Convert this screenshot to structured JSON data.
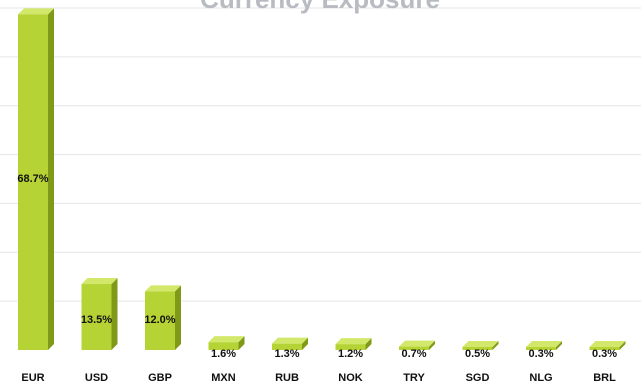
{
  "chart_data": {
    "type": "bar",
    "title": "Currency Exposure",
    "categories": [
      "EUR",
      "USD",
      "GBP",
      "MXN",
      "RUB",
      "NOK",
      "TRY",
      "SGD",
      "NLG",
      "BRL"
    ],
    "values": [
      68.7,
      13.5,
      12.0,
      1.6,
      1.3,
      1.2,
      0.7,
      0.5,
      0.3,
      0.3
    ],
    "data_labels": [
      "68.7%",
      "13.5%",
      "12.0%",
      "1.6%",
      "1.3%",
      "1.2%",
      "0.7%",
      "0.5%",
      "0.3%",
      "0.3%"
    ],
    "xlabel": "",
    "ylabel": "",
    "ylim": [
      0,
      70
    ],
    "grid": true,
    "legend": "none"
  },
  "colors": {
    "bar_front": "#b5d334",
    "bar_side": "#7f9a18",
    "bar_top": "#d2e86a",
    "title": "#b8bcc2"
  }
}
